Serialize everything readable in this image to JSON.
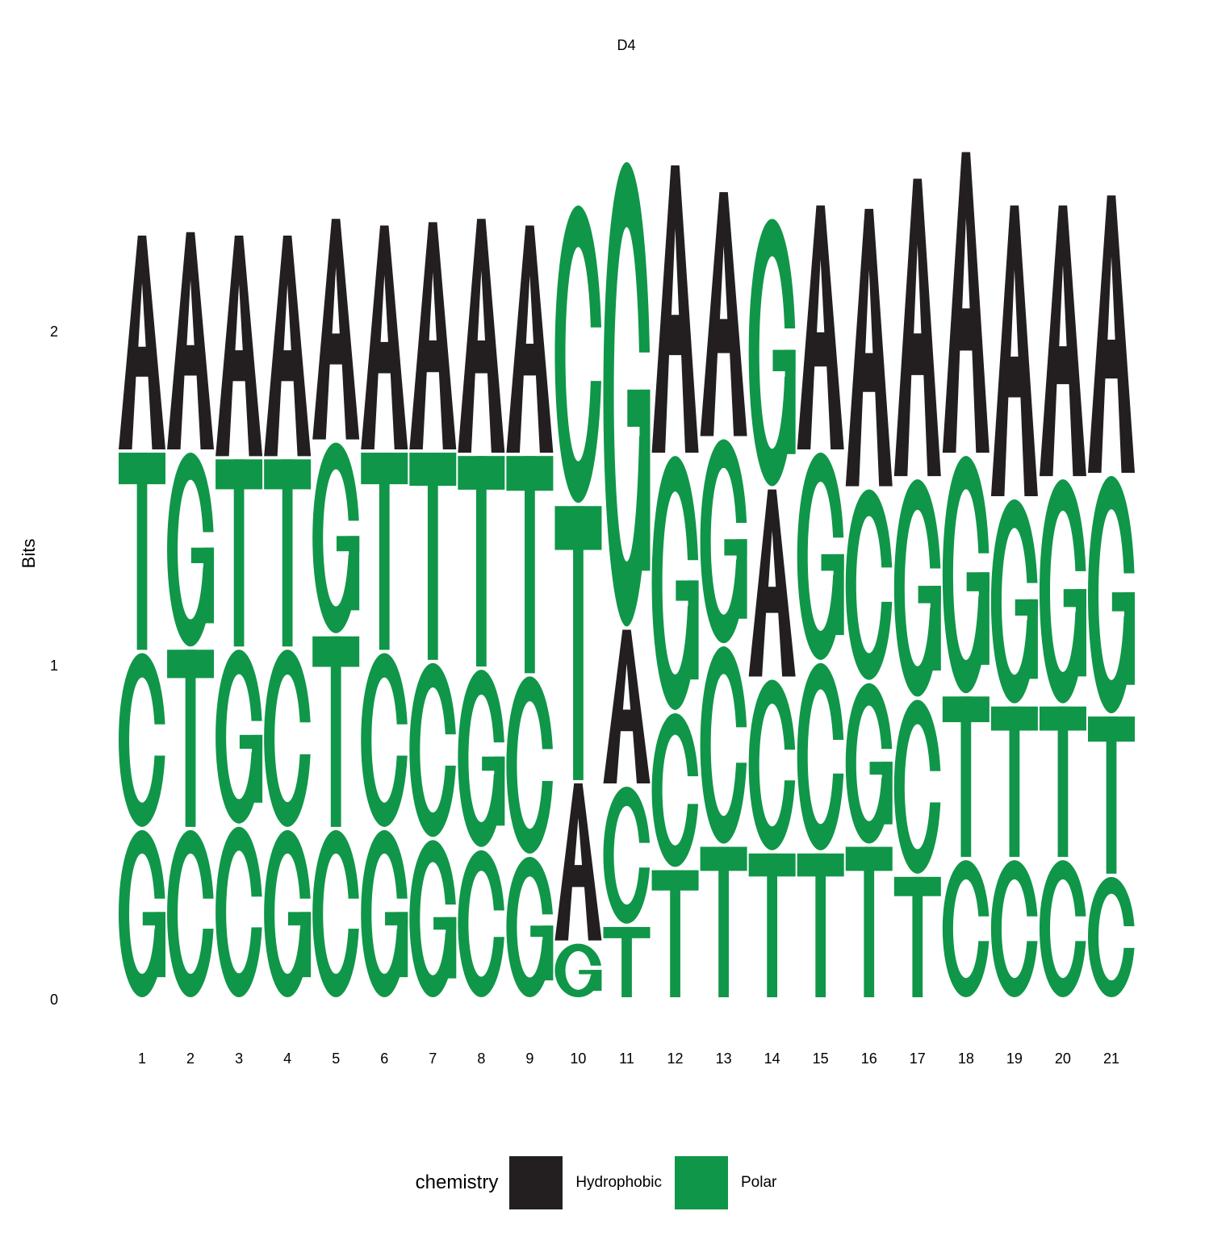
{
  "chart_data": {
    "type": "sequence-logo",
    "title": "D4",
    "ylabel": "Bits",
    "xlabel": "",
    "ylim": [
      0,
      2.4
    ],
    "y_ticks": [
      "0",
      "1",
      "2"
    ],
    "positions": [
      "1",
      "2",
      "3",
      "4",
      "5",
      "6",
      "7",
      "8",
      "9",
      "10",
      "11",
      "12",
      "13",
      "14",
      "15",
      "16",
      "17",
      "18",
      "19",
      "20",
      "21"
    ],
    "stacks": [
      [
        {
          "letter": "G",
          "height": 0.51
        },
        {
          "letter": "C",
          "height": 0.53
        },
        {
          "letter": "T",
          "height": 0.6
        },
        {
          "letter": "A",
          "height": 0.65
        }
      ],
      [
        {
          "letter": "C",
          "height": 0.51
        },
        {
          "letter": "T",
          "height": 0.54
        },
        {
          "letter": "G",
          "height": 0.59
        },
        {
          "letter": "A",
          "height": 0.66
        }
      ],
      [
        {
          "letter": "C",
          "height": 0.52
        },
        {
          "letter": "G",
          "height": 0.53
        },
        {
          "letter": "T",
          "height": 0.57
        },
        {
          "letter": "A",
          "height": 0.67
        }
      ],
      [
        {
          "letter": "G",
          "height": 0.51
        },
        {
          "letter": "C",
          "height": 0.54
        },
        {
          "letter": "T",
          "height": 0.57
        },
        {
          "letter": "A",
          "height": 0.67
        }
      ],
      [
        {
          "letter": "C",
          "height": 0.51
        },
        {
          "letter": "T",
          "height": 0.58
        },
        {
          "letter": "G",
          "height": 0.58
        },
        {
          "letter": "A",
          "height": 0.67
        }
      ],
      [
        {
          "letter": "G",
          "height": 0.51
        },
        {
          "letter": "C",
          "height": 0.53
        },
        {
          "letter": "T",
          "height": 0.6
        },
        {
          "letter": "A",
          "height": 0.68
        }
      ],
      [
        {
          "letter": "G",
          "height": 0.48
        },
        {
          "letter": "C",
          "height": 0.53
        },
        {
          "letter": "T",
          "height": 0.63
        },
        {
          "letter": "A",
          "height": 0.69
        }
      ],
      [
        {
          "letter": "C",
          "height": 0.45
        },
        {
          "letter": "G",
          "height": 0.54
        },
        {
          "letter": "T",
          "height": 0.64
        },
        {
          "letter": "A",
          "height": 0.71
        }
      ],
      [
        {
          "letter": "G",
          "height": 0.43
        },
        {
          "letter": "C",
          "height": 0.54
        },
        {
          "letter": "T",
          "height": 0.66
        },
        {
          "letter": "A",
          "height": 0.69
        }
      ],
      [
        {
          "letter": "G",
          "height": 0.17
        },
        {
          "letter": "A",
          "height": 0.48
        },
        {
          "letter": "T",
          "height": 0.83
        },
        {
          "letter": "C",
          "height": 0.9
        }
      ],
      [
        {
          "letter": "T",
          "height": 0.22
        },
        {
          "letter": "C",
          "height": 0.42
        },
        {
          "letter": "A",
          "height": 0.47
        },
        {
          "letter": "G",
          "height": 1.4
        }
      ],
      [
        {
          "letter": "T",
          "height": 0.39
        },
        {
          "letter": "C",
          "height": 0.47
        },
        {
          "letter": "G",
          "height": 0.77
        },
        {
          "letter": "A",
          "height": 0.87
        }
      ],
      [
        {
          "letter": "T",
          "height": 0.46
        },
        {
          "letter": "C",
          "height": 0.6
        },
        {
          "letter": "G",
          "height": 0.62
        },
        {
          "letter": "A",
          "height": 0.74
        }
      ],
      [
        {
          "letter": "T",
          "height": 0.44
        },
        {
          "letter": "C",
          "height": 0.52
        },
        {
          "letter": "A",
          "height": 0.57
        },
        {
          "letter": "G",
          "height": 0.81
        }
      ],
      [
        {
          "letter": "T",
          "height": 0.44
        },
        {
          "letter": "C",
          "height": 0.57
        },
        {
          "letter": "G",
          "height": 0.63
        },
        {
          "letter": "A",
          "height": 0.74
        }
      ],
      [
        {
          "letter": "T",
          "height": 0.46
        },
        {
          "letter": "G",
          "height": 0.49
        },
        {
          "letter": "C",
          "height": 0.58
        },
        {
          "letter": "A",
          "height": 0.84
        }
      ],
      [
        {
          "letter": "T",
          "height": 0.37
        },
        {
          "letter": "C",
          "height": 0.53
        },
        {
          "letter": "G",
          "height": 0.66
        },
        {
          "letter": "A",
          "height": 0.9
        }
      ],
      [
        {
          "letter": "C",
          "height": 0.42
        },
        {
          "letter": "T",
          "height": 0.49
        },
        {
          "letter": "G",
          "height": 0.72
        },
        {
          "letter": "A",
          "height": 0.91
        }
      ],
      [
        {
          "letter": "C",
          "height": 0.42
        },
        {
          "letter": "T",
          "height": 0.46
        },
        {
          "letter": "G",
          "height": 0.62
        },
        {
          "letter": "A",
          "height": 0.88
        }
      ],
      [
        {
          "letter": "C",
          "height": 0.42
        },
        {
          "letter": "T",
          "height": 0.46
        },
        {
          "letter": "G",
          "height": 0.68
        },
        {
          "letter": "A",
          "height": 0.82
        }
      ],
      [
        {
          "letter": "C",
          "height": 0.37
        },
        {
          "letter": "T",
          "height": 0.48
        },
        {
          "letter": "G",
          "height": 0.72
        },
        {
          "letter": "A",
          "height": 0.84
        }
      ]
    ],
    "legend": {
      "title": "chemistry",
      "position": "bottom",
      "entries": [
        {
          "name": "Hydrophobic",
          "color": "#231f20",
          "letters": [
            "A"
          ]
        },
        {
          "name": "Polar",
          "color": "#109648",
          "letters": [
            "C",
            "G",
            "T"
          ]
        }
      ]
    },
    "grid": false
  }
}
